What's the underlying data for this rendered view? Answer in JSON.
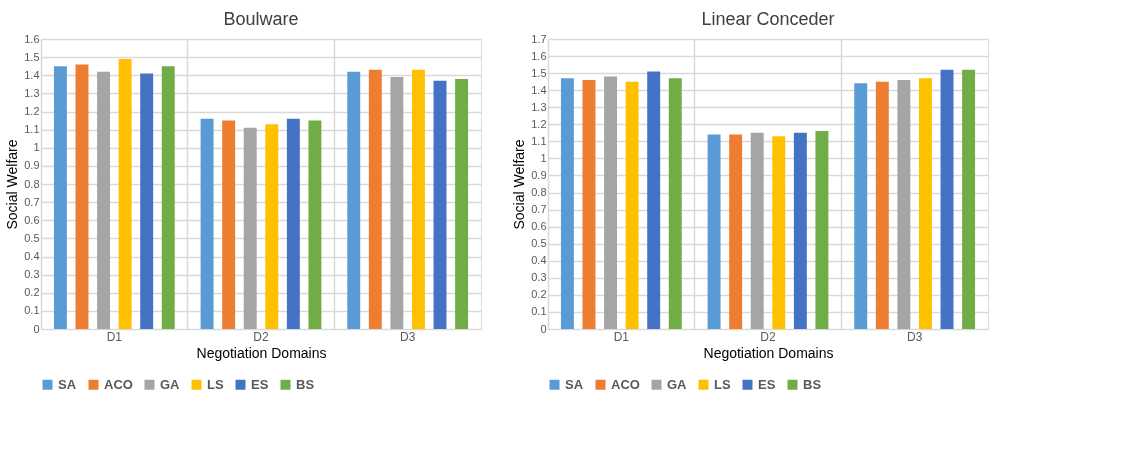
{
  "chart_data": [
    {
      "type": "bar",
      "title": "Boulware",
      "xlabel": "Negotiation Domains",
      "ylabel": "Social Welfare",
      "categories": [
        "D1",
        "D2",
        "D3"
      ],
      "series": [
        {
          "name": "SA",
          "color": "#5b9bd5",
          "values": [
            1.45,
            1.16,
            1.42
          ]
        },
        {
          "name": "ACO",
          "color": "#ed7d31",
          "values": [
            1.46,
            1.15,
            1.43
          ]
        },
        {
          "name": "GA",
          "color": "#a5a5a5",
          "values": [
            1.42,
            1.11,
            1.39
          ]
        },
        {
          "name": "LS",
          "color": "#ffc000",
          "values": [
            1.49,
            1.13,
            1.43
          ]
        },
        {
          "name": "ES",
          "color": "#4472c4",
          "values": [
            1.41,
            1.16,
            1.37
          ]
        },
        {
          "name": "BS",
          "color": "#70ad47",
          "values": [
            1.45,
            1.15,
            1.38
          ]
        }
      ],
      "ylim": [
        0,
        1.6
      ],
      "yticks": [
        0,
        0.1,
        0.2,
        0.3,
        0.4,
        0.5,
        0.6,
        0.7,
        0.8,
        0.9,
        1,
        1.1,
        1.2,
        1.3,
        1.4,
        1.5,
        1.6
      ],
      "grid": true,
      "legend": "bottom"
    },
    {
      "type": "bar",
      "title": "Linear Conceder",
      "xlabel": "Negotiation Domains",
      "ylabel": "Social Welfare",
      "categories": [
        "D1",
        "D2",
        "D3"
      ],
      "series": [
        {
          "name": "SA",
          "color": "#5b9bd5",
          "values": [
            1.47,
            1.14,
            1.44
          ]
        },
        {
          "name": "ACO",
          "color": "#ed7d31",
          "values": [
            1.46,
            1.14,
            1.45
          ]
        },
        {
          "name": "GA",
          "color": "#a5a5a5",
          "values": [
            1.48,
            1.15,
            1.46
          ]
        },
        {
          "name": "LS",
          "color": "#ffc000",
          "values": [
            1.45,
            1.13,
            1.47
          ]
        },
        {
          "name": "ES",
          "color": "#4472c4",
          "values": [
            1.51,
            1.15,
            1.52
          ]
        },
        {
          "name": "BS",
          "color": "#70ad47",
          "values": [
            1.47,
            1.16,
            1.52
          ]
        }
      ],
      "ylim": [
        0,
        1.7
      ],
      "yticks": [
        0,
        0.1,
        0.2,
        0.3,
        0.4,
        0.5,
        0.6,
        0.7,
        0.8,
        0.9,
        1,
        1.1,
        1.2,
        1.3,
        1.4,
        1.5,
        1.6,
        1.7
      ],
      "grid": true,
      "legend": "bottom"
    }
  ]
}
